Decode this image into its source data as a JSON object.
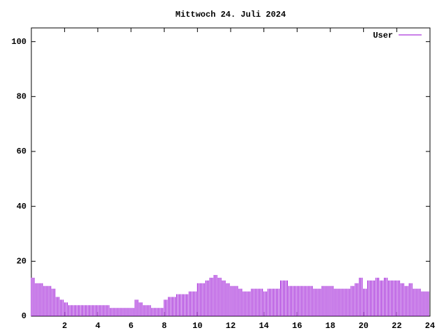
{
  "chart_data": {
    "type": "impulse",
    "title": "Mittwoch 24. Juli 2024",
    "x": [
      0,
      0.25,
      0.5,
      0.75,
      1,
      1.25,
      1.5,
      1.75,
      2,
      2.25,
      2.5,
      2.75,
      3,
      3.25,
      3.5,
      3.75,
      4,
      4.25,
      4.5,
      4.75,
      5,
      5.25,
      5.5,
      5.75,
      6,
      6.25,
      6.5,
      6.75,
      7,
      7.25,
      7.5,
      7.75,
      8,
      8.25,
      8.5,
      8.75,
      9,
      9.25,
      9.5,
      9.75,
      10,
      10.25,
      10.5,
      10.75,
      11,
      11.25,
      11.5,
      11.75,
      12,
      12.25,
      12.5,
      12.75,
      13,
      13.25,
      13.5,
      13.75,
      14,
      14.25,
      14.5,
      14.75,
      15,
      15.25,
      15.5,
      15.75,
      16,
      16.25,
      16.5,
      16.75,
      17,
      17.25,
      17.5,
      17.75,
      18,
      18.25,
      18.5,
      18.75,
      19,
      19.25,
      19.5,
      19.75,
      20,
      20.25,
      20.5,
      20.75,
      21,
      21.25,
      21.5,
      21.75,
      22,
      22.25,
      22.5,
      22.75,
      23,
      23.25,
      23.5,
      23.75
    ],
    "series": [
      {
        "name": "User",
        "color": "#9400d3",
        "values": [
          14,
          12,
          12,
          11,
          11,
          10,
          7,
          6,
          5,
          4,
          4,
          4,
          4,
          4,
          4,
          4,
          4,
          4,
          4,
          3,
          3,
          3,
          3,
          3,
          3,
          6,
          5,
          4,
          4,
          3,
          3,
          3,
          6,
          7,
          7,
          8,
          8,
          8,
          9,
          9,
          12,
          12,
          13,
          14,
          15,
          14,
          13,
          12,
          11,
          11,
          10,
          9,
          9,
          10,
          10,
          10,
          9,
          10,
          10,
          10,
          13,
          13,
          11,
          11,
          11,
          11,
          11,
          11,
          10,
          10,
          11,
          11,
          11,
          10,
          10,
          10,
          10,
          11,
          12,
          14,
          10,
          13,
          13,
          14,
          13,
          14,
          13,
          13,
          13,
          12,
          11,
          12,
          10,
          10,
          9,
          9
        ]
      }
    ],
    "xlim": [
      0,
      24
    ],
    "xticks": [
      2,
      4,
      6,
      8,
      10,
      12,
      14,
      16,
      18,
      20,
      22,
      24
    ],
    "ylim": [
      0,
      105
    ],
    "yticks": [
      0,
      20,
      40,
      60,
      80,
      100
    ],
    "legend": "top-right"
  }
}
